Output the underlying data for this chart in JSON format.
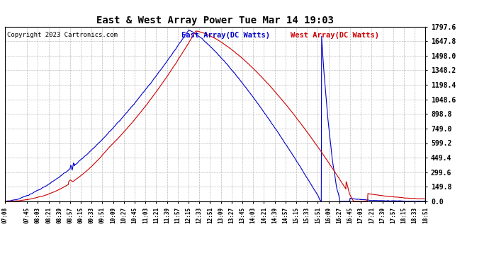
{
  "title": "East & West Array Power Tue Mar 14 19:03",
  "copyright": "Copyright 2023 Cartronics.com",
  "east_label": "East Array(DC Watts)",
  "west_label": "West Array(DC Watts)",
  "east_color": "#0000cc",
  "west_color": "#cc0000",
  "background_color": "#ffffff",
  "grid_color": "#aaaaaa",
  "ylim": [
    0.0,
    1797.6
  ],
  "yticks": [
    0.0,
    149.8,
    299.6,
    449.4,
    599.2,
    749.0,
    898.8,
    1048.6,
    1198.4,
    1348.2,
    1498.0,
    1647.8,
    1797.6
  ],
  "xtick_labels": [
    "07:08",
    "07:45",
    "08:03",
    "08:21",
    "08:39",
    "08:57",
    "09:15",
    "09:33",
    "09:51",
    "10:09",
    "10:27",
    "10:45",
    "11:03",
    "11:21",
    "11:39",
    "11:57",
    "12:15",
    "12:33",
    "12:51",
    "13:09",
    "13:27",
    "13:45",
    "14:03",
    "14:21",
    "14:39",
    "14:57",
    "15:15",
    "15:33",
    "15:51",
    "16:09",
    "16:27",
    "16:45",
    "17:03",
    "17:21",
    "17:39",
    "17:57",
    "18:15",
    "18:33",
    "18:51"
  ]
}
